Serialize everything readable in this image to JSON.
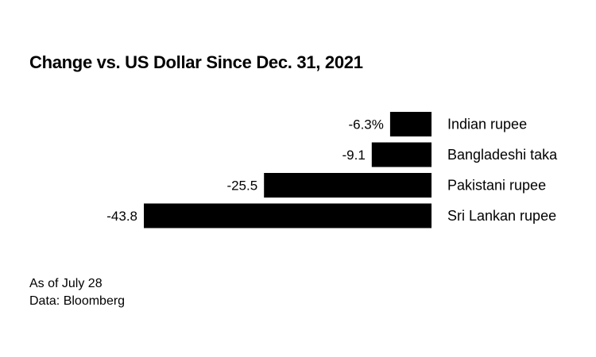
{
  "chart_data": {
    "type": "bar",
    "orientation": "horizontal",
    "title": "Change vs. US Dollar Since Dec. 31, 2021",
    "categories": [
      "Indian rupee",
      "Bangladeshi taka",
      "Pakistani rupee",
      "Sri Lankan rupee"
    ],
    "values": [
      -6.3,
      -9.1,
      -25.5,
      -43.8
    ],
    "value_labels": [
      "-6.3%",
      "-9.1",
      "-25.5",
      "-43.8"
    ],
    "unit": "%",
    "xlim": [
      -43.8,
      0
    ],
    "bar_color": "#000000"
  },
  "footnotes": {
    "as_of": "As of July 28",
    "source": "Data: Bloomberg"
  }
}
